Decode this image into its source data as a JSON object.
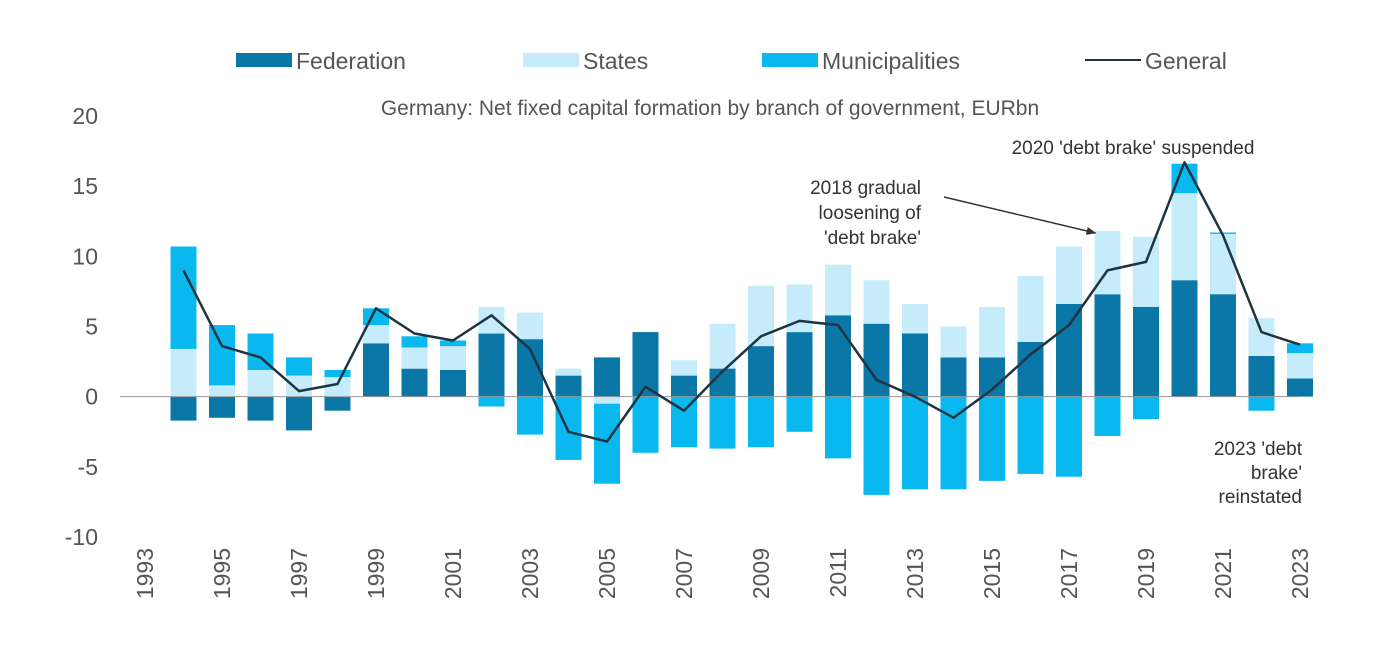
{
  "colors": {
    "federation": "#0b77a6",
    "states": "#c6ecfb",
    "municipalities": "#08b8ef",
    "general": "#1f3441",
    "axis_text": "#555555",
    "zero_line": "#999999"
  },
  "legend": [
    {
      "key": "federation",
      "label": "Federation",
      "kind": "bar"
    },
    {
      "key": "states",
      "label": "States",
      "kind": "bar"
    },
    {
      "key": "municipalities",
      "label": "Municipalities",
      "kind": "bar"
    },
    {
      "key": "general",
      "label": "General",
      "kind": "line"
    }
  ],
  "chart_data": {
    "type": "bar",
    "stacked": true,
    "title": "Germany: Net fixed capital formation by branch of government, EURbn",
    "xlabel": "",
    "ylabel": "",
    "ylim": [
      -10,
      20
    ],
    "yticks": [
      20,
      15,
      10,
      5,
      0,
      -5,
      -10
    ],
    "xlim": [
      1993,
      2023
    ],
    "xticks": [
      "1993",
      "1995",
      "1997",
      "1999",
      "2001",
      "2003",
      "2005",
      "2007",
      "2009",
      "2011",
      "2013",
      "2015",
      "2017",
      "2019",
      "2021",
      "2023"
    ],
    "categories": [
      1994,
      1995,
      1996,
      1997,
      1998,
      1999,
      2000,
      2001,
      2002,
      2003,
      2004,
      2005,
      2006,
      2007,
      2008,
      2009,
      2010,
      2011,
      2012,
      2013,
      2014,
      2015,
      2016,
      2017,
      2018,
      2019,
      2020,
      2021,
      2022,
      2023
    ],
    "series": [
      {
        "name": "Federation",
        "key": "federation",
        "values": [
          -1.7,
          -1.5,
          -1.7,
          -2.4,
          -1.0,
          3.8,
          2.0,
          1.9,
          4.5,
          4.1,
          1.5,
          2.8,
          4.6,
          1.5,
          2.0,
          3.6,
          4.6,
          5.8,
          5.2,
          4.5,
          2.8,
          2.8,
          3.9,
          6.6,
          7.3,
          6.4,
          8.3,
          7.3,
          2.9,
          1.3
        ]
      },
      {
        "name": "States",
        "key": "states",
        "values": [
          3.4,
          0.8,
          1.9,
          1.5,
          1.4,
          1.3,
          1.5,
          1.7,
          1.9,
          1.9,
          0.5,
          -0.5,
          0.0,
          1.1,
          3.2,
          4.3,
          3.4,
          3.6,
          3.1,
          2.1,
          2.2,
          3.6,
          4.7,
          4.1,
          4.5,
          5.0,
          6.2,
          4.3,
          2.7,
          1.8
        ]
      },
      {
        "name": "Municipalities",
        "key": "municipalities",
        "values": [
          7.3,
          4.3,
          2.6,
          1.3,
          0.5,
          1.2,
          0.8,
          0.4,
          -0.7,
          -2.7,
          -4.5,
          -5.7,
          -4.0,
          -3.6,
          -3.7,
          -3.6,
          -2.5,
          -4.4,
          -7.0,
          -6.6,
          -6.6,
          -6.0,
          -5.5,
          -5.7,
          -2.8,
          -1.6,
          2.1,
          0.1,
          -1.0,
          0.7
        ]
      },
      {
        "name": "General",
        "key": "general",
        "type": "line",
        "values": [
          9.0,
          3.6,
          2.8,
          0.4,
          0.9,
          6.3,
          4.5,
          4.0,
          5.8,
          3.4,
          -2.5,
          -3.2,
          0.7,
          -1.0,
          1.8,
          4.3,
          5.4,
          5.1,
          1.2,
          0.0,
          -1.5,
          0.5,
          3.0,
          5.1,
          9.0,
          9.6,
          16.7,
          11.5,
          4.6,
          3.7
        ]
      }
    ],
    "annotations": [
      {
        "text_lines": [
          "2018 gradual",
          "loosening of",
          "'debt brake'"
        ],
        "arrow_to_year": 2018
      },
      {
        "text_lines": [
          "2020 'debt brake' suspended"
        ]
      },
      {
        "text_lines": [
          "2023 'debt",
          "brake'",
          "reinstated"
        ]
      }
    ]
  }
}
